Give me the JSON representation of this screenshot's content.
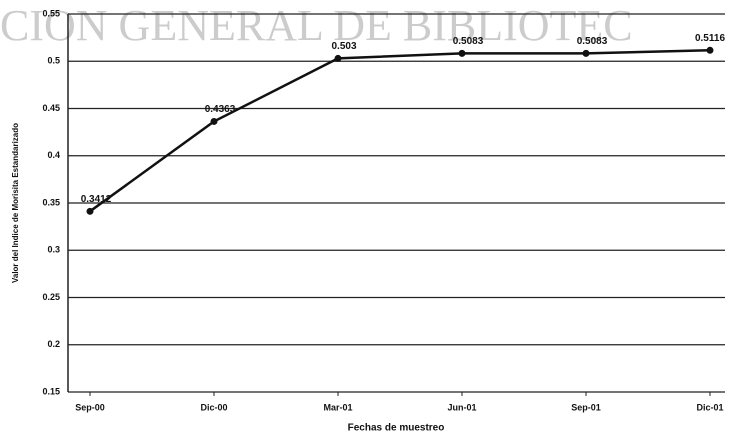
{
  "chart_data": {
    "type": "line",
    "watermark": "CION GENERAL DE BIBLIOTEC",
    "x_label": "Fechas de muestreo",
    "y_label": "Valor del Indice de Morisita Estandarizado",
    "categories": [
      "Sep-00",
      "Dic-00",
      "Mar-01",
      "Jun-01",
      "Sep-01",
      "Dic-01"
    ],
    "values": [
      0.3412,
      0.4363,
      0.503,
      0.5083,
      0.5083,
      0.5116
    ],
    "color": "#111111",
    "ylim": [
      0.15,
      0.55
    ],
    "yticks": [
      0.15,
      0.2,
      0.25,
      0.3,
      0.35,
      0.4,
      0.45,
      0.5,
      0.55
    ],
    "grid": true
  }
}
